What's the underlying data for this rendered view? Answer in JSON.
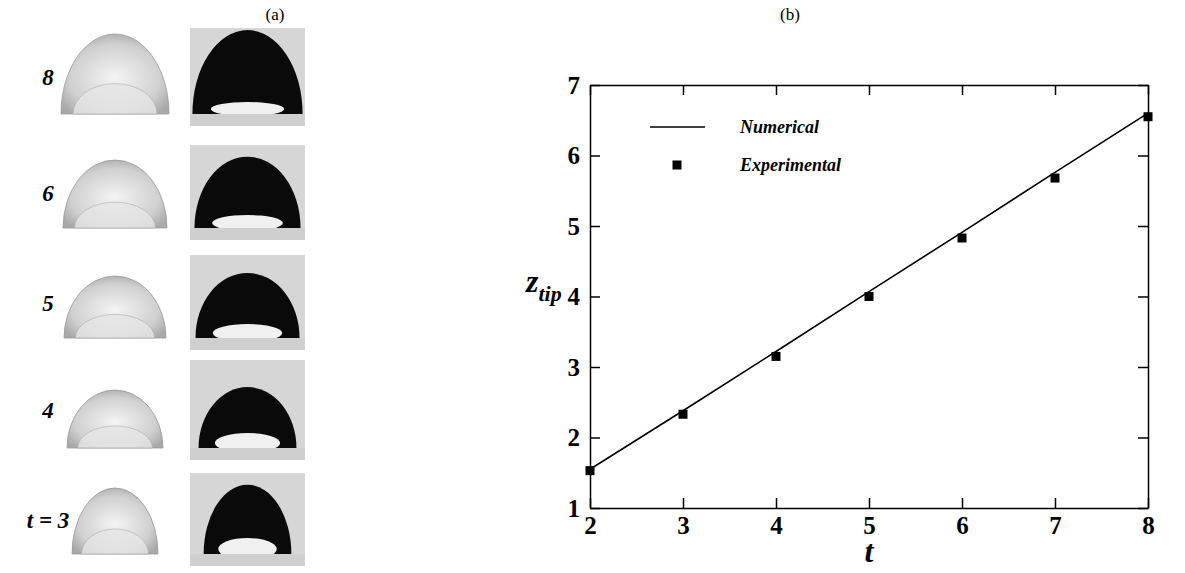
{
  "panel_a": {
    "label": "(a)",
    "time_labels": [
      "8",
      "6",
      "5",
      "4",
      "t = 3"
    ]
  },
  "chart_data": {
    "type": "line",
    "panel_label": "(b)",
    "xlabel": "t",
    "ylabel": "z",
    "ylabel_sub": "tip",
    "x": [
      2,
      3,
      4,
      5,
      6,
      7,
      8
    ],
    "series": [
      {
        "name": "Numerical",
        "type": "line",
        "color": "#000000",
        "line_style": "solid",
        "values": [
          1.55,
          2.38,
          3.22,
          4.07,
          4.91,
          5.76,
          6.6
        ]
      },
      {
        "name": "Experimental",
        "type": "scatter",
        "color": "#000000",
        "marker": "square",
        "values": [
          1.53,
          2.33,
          3.15,
          4.0,
          4.83,
          5.68,
          6.55
        ]
      }
    ],
    "xlim": [
      2,
      8
    ],
    "xticks": [
      2,
      3,
      4,
      5,
      6,
      7,
      8
    ],
    "ylim": [
      1,
      7
    ],
    "yticks": [
      1,
      2,
      3,
      4,
      5,
      6,
      7
    ],
    "legend": "upper left",
    "grid": false
  }
}
